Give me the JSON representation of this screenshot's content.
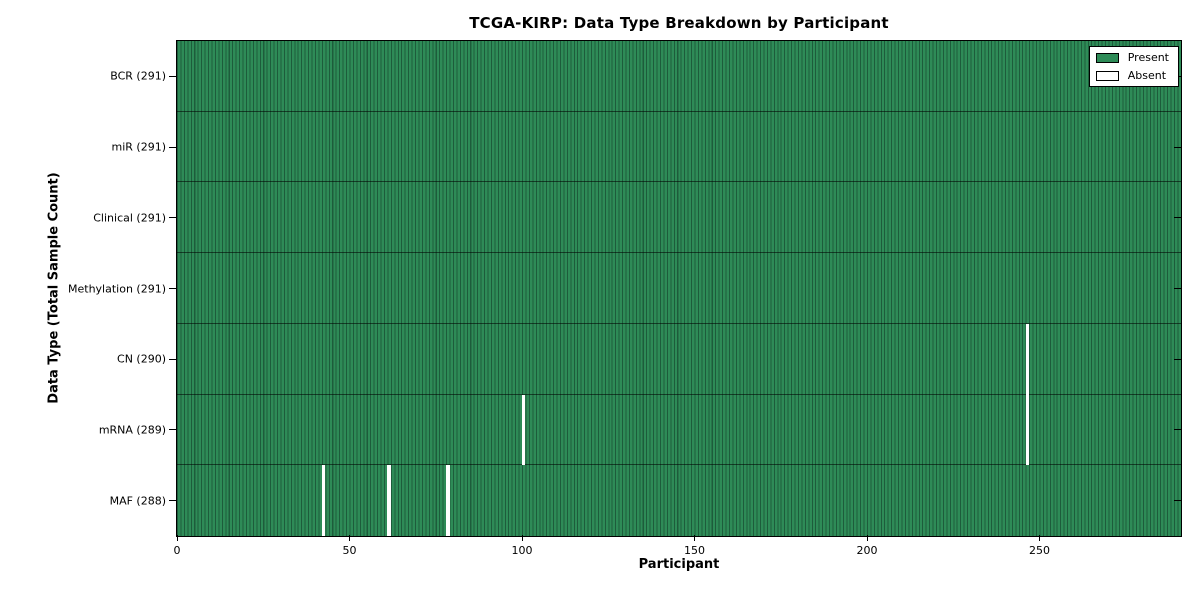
{
  "title": "TCGA-KIRP: Data Type Breakdown by Participant",
  "axes": {
    "xlabel": "Participant",
    "ylabel": "Data Type (Total Sample Count)"
  },
  "legend": {
    "items": [
      {
        "label": "Present",
        "color": "#2e8b57"
      },
      {
        "label": "Absent",
        "color": "#ffffff"
      }
    ]
  },
  "colors": {
    "present": "#2e8b57",
    "bar_edge": "#1d5c3b",
    "row_divider": "rgba(0,0,0,0.55)",
    "absent": "#ffffff",
    "frame": "#000000",
    "background": "#ffffff"
  },
  "chart_data": {
    "type": "heatmap",
    "title": "TCGA-KIRP: Data Type Breakdown by Participant",
    "xlabel": "Participant",
    "ylabel": "Data Type (Total Sample Count)",
    "n_participants": 291,
    "x_range": [
      0,
      291
    ],
    "x_ticks": [
      0,
      50,
      100,
      150,
      200,
      250
    ],
    "legend_entries": [
      "Present",
      "Absent"
    ],
    "legend_position": "upper right",
    "grid": false,
    "rows": [
      {
        "label": "BCR (291)",
        "data_type": "BCR",
        "present_count": 291,
        "absent_participants": []
      },
      {
        "label": "miR (291)",
        "data_type": "miR",
        "present_count": 291,
        "absent_participants": []
      },
      {
        "label": "Clinical (291)",
        "data_type": "Clinical",
        "present_count": 291,
        "absent_participants": []
      },
      {
        "label": "Methylation (291)",
        "data_type": "Methylation",
        "present_count": 291,
        "absent_participants": []
      },
      {
        "label": "CN (290)",
        "data_type": "CN",
        "present_count": 290,
        "absent_participants": [
          246
        ]
      },
      {
        "label": "mRNA (289)",
        "data_type": "mRNA",
        "present_count": 289,
        "absent_participants": [
          100,
          246
        ]
      },
      {
        "label": "MAF (288)",
        "data_type": "MAF",
        "present_count": 288,
        "absent_participants": [
          42,
          61,
          78
        ]
      }
    ]
  }
}
